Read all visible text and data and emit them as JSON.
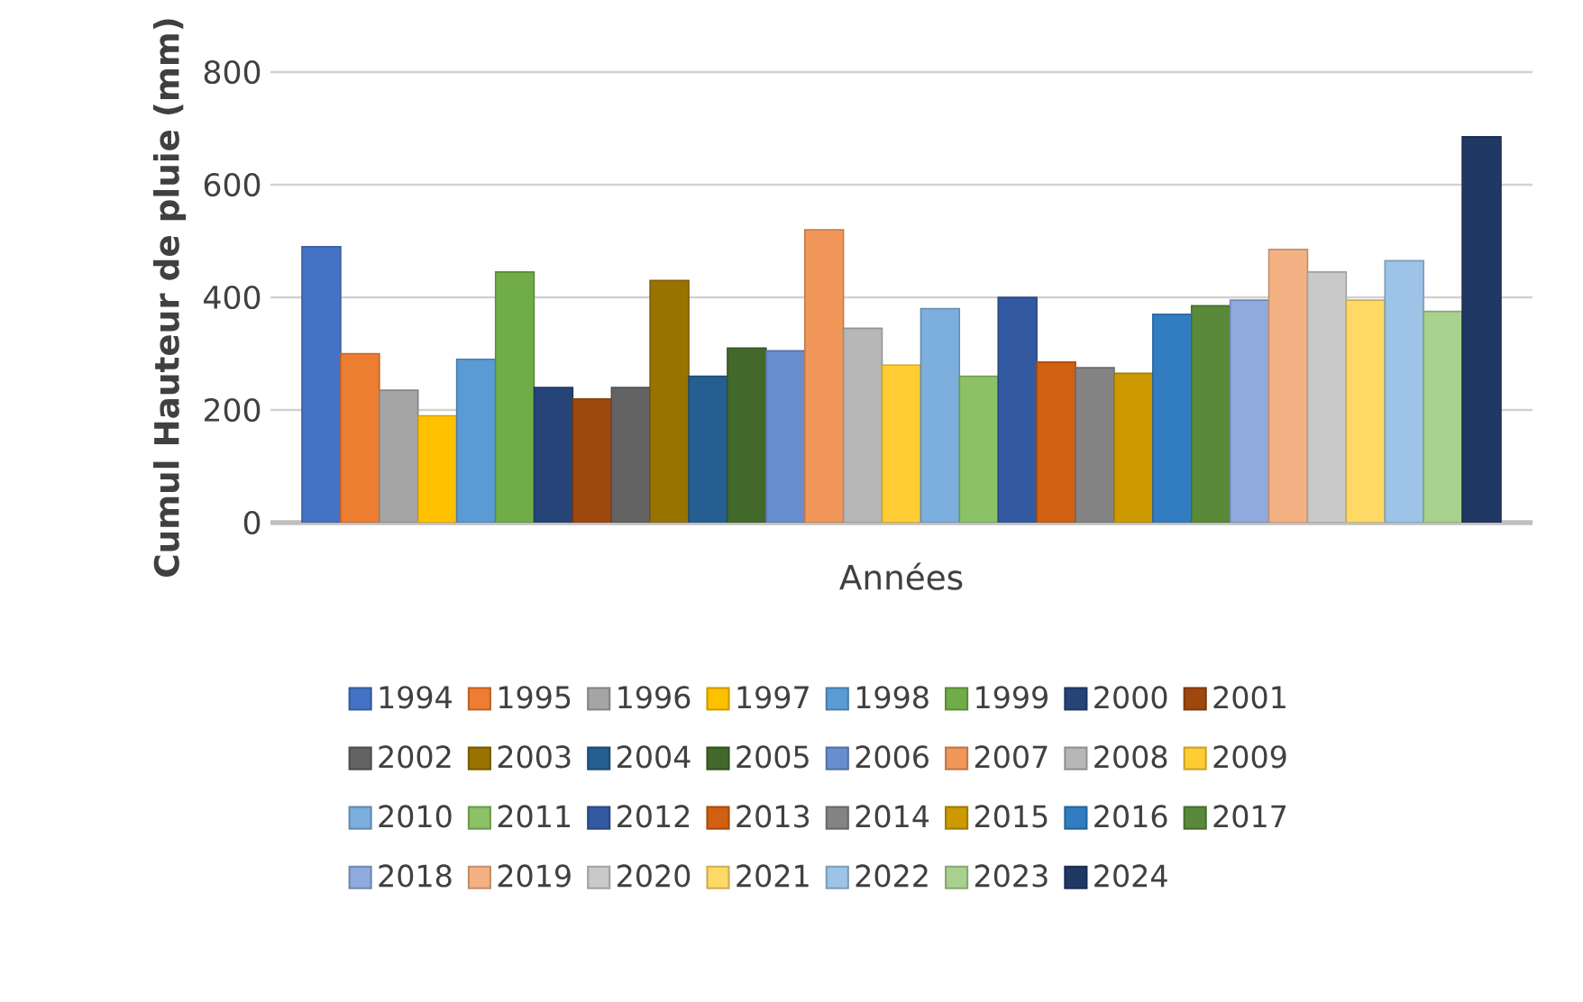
{
  "chart_data": {
    "type": "bar",
    "xlabel": "Années",
    "ylabel": "Cumul Hauteur de pluie (mm)",
    "categories": [
      null
    ],
    "ylim": [
      0,
      800
    ],
    "yticks": [
      0,
      200,
      400,
      600,
      800
    ],
    "grid": "y",
    "legend": "bottom",
    "series": [
      {
        "name": "1994",
        "color": "#4472c4",
        "values": [
          490
        ]
      },
      {
        "name": "1995",
        "color": "#ed7d31",
        "values": [
          300
        ]
      },
      {
        "name": "1996",
        "color": "#a5a5a5",
        "values": [
          235
        ]
      },
      {
        "name": "1997",
        "color": "#ffc000",
        "values": [
          190
        ]
      },
      {
        "name": "1998",
        "color": "#5b9bd5",
        "values": [
          290
        ]
      },
      {
        "name": "1999",
        "color": "#70ad47",
        "values": [
          445
        ]
      },
      {
        "name": "2000",
        "color": "#264478",
        "values": [
          240
        ]
      },
      {
        "name": "2001",
        "color": "#9e480e",
        "values": [
          220
        ]
      },
      {
        "name": "2002",
        "color": "#636363",
        "values": [
          240
        ]
      },
      {
        "name": "2003",
        "color": "#997300",
        "values": [
          430
        ]
      },
      {
        "name": "2004",
        "color": "#255e91",
        "values": [
          260
        ]
      },
      {
        "name": "2005",
        "color": "#43682b",
        "values": [
          310
        ]
      },
      {
        "name": "2006",
        "color": "#698ed0",
        "values": [
          305
        ]
      },
      {
        "name": "2007",
        "color": "#f1975a",
        "values": [
          520
        ]
      },
      {
        "name": "2008",
        "color": "#b7b7b7",
        "values": [
          345
        ]
      },
      {
        "name": "2009",
        "color": "#ffcd33",
        "values": [
          280
        ]
      },
      {
        "name": "2010",
        "color": "#7cafdd",
        "values": [
          380
        ]
      },
      {
        "name": "2011",
        "color": "#8cc168",
        "values": [
          260
        ]
      },
      {
        "name": "2012",
        "color": "#335aa1",
        "values": [
          400
        ]
      },
      {
        "name": "2013",
        "color": "#d26012",
        "values": [
          285
        ]
      },
      {
        "name": "2014",
        "color": "#848484",
        "values": [
          275
        ]
      },
      {
        "name": "2015",
        "color": "#cc9a00",
        "values": [
          265
        ]
      },
      {
        "name": "2016",
        "color": "#327dc2",
        "values": [
          370
        ]
      },
      {
        "name": "2017",
        "color": "#5a8a39",
        "values": [
          385
        ]
      },
      {
        "name": "2018",
        "color": "#8faadc",
        "values": [
          395
        ]
      },
      {
        "name": "2019",
        "color": "#f4b183",
        "values": [
          485
        ]
      },
      {
        "name": "2020",
        "color": "#c9c9c9",
        "values": [
          445
        ]
      },
      {
        "name": "2021",
        "color": "#ffd966",
        "values": [
          395
        ]
      },
      {
        "name": "2022",
        "color": "#9dc3e6",
        "values": [
          465
        ]
      },
      {
        "name": "2023",
        "color": "#a9d18e",
        "values": [
          375
        ]
      },
      {
        "name": "2024",
        "color": "#203864",
        "values": [
          685
        ]
      }
    ]
  }
}
